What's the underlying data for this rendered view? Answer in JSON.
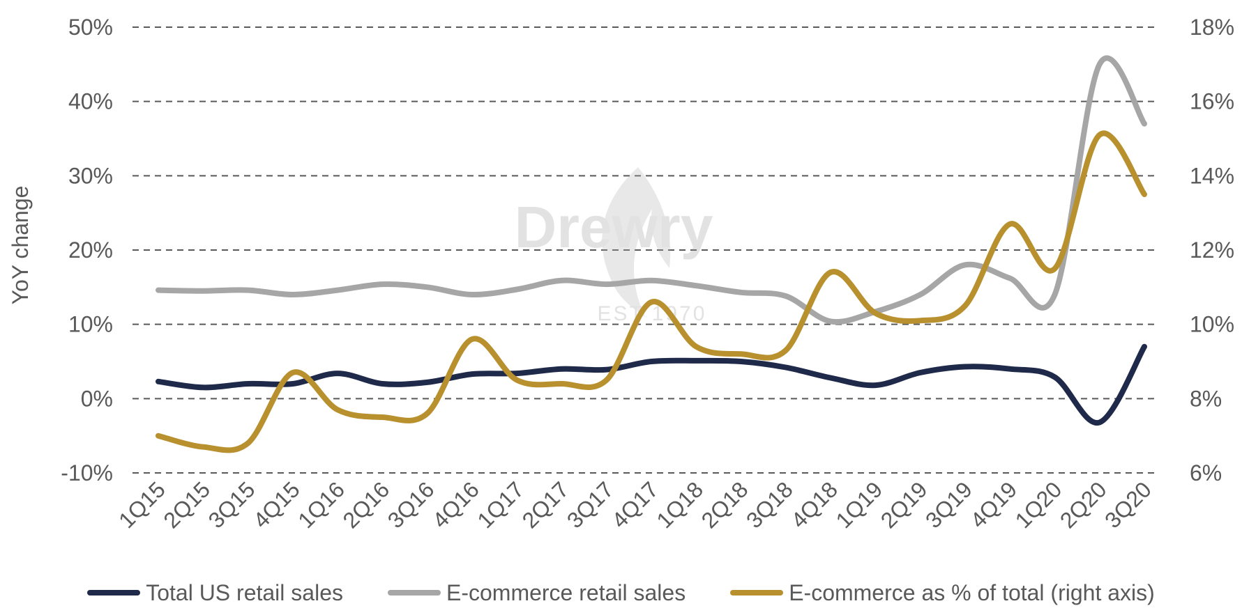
{
  "chart_data": {
    "type": "line",
    "title": "",
    "watermark": "Drewry EST 1970",
    "xlabel": "",
    "ylabel": "YoY change",
    "categories": [
      "1Q15",
      "2Q15",
      "3Q15",
      "4Q15",
      "1Q16",
      "2Q16",
      "3Q16",
      "4Q16",
      "1Q17",
      "2Q17",
      "3Q17",
      "4Q17",
      "1Q18",
      "2Q18",
      "3Q18",
      "4Q18",
      "1Q19",
      "2Q19",
      "3Q19",
      "4Q19",
      "1Q20",
      "2Q20",
      "3Q20"
    ],
    "left_axis": {
      "ylim": [
        -10,
        50
      ],
      "ticks": [
        -10,
        0,
        10,
        20,
        30,
        40,
        50
      ],
      "tick_labels": [
        "-10%",
        "0%",
        "10%",
        "20%",
        "30%",
        "40%",
        "50%"
      ]
    },
    "right_axis": {
      "ylim": [
        6,
        18
      ],
      "ticks": [
        6,
        8,
        10,
        12,
        14,
        16,
        18
      ],
      "tick_labels": [
        "6%",
        "8%",
        "10%",
        "12%",
        "14%",
        "16%",
        "18%"
      ]
    },
    "grid": true,
    "legend_position": "bottom",
    "series": [
      {
        "name": "Total US retail sales",
        "axis": "left",
        "color": "#1f2a4a",
        "values": [
          2.3,
          1.5,
          2.0,
          2.0,
          3.4,
          2.0,
          2.2,
          3.3,
          3.4,
          4.0,
          3.9,
          5.0,
          5.1,
          5.0,
          4.2,
          2.8,
          1.8,
          3.5,
          4.3,
          4.0,
          2.9,
          -3.2,
          7.0
        ]
      },
      {
        "name": "E-commerce retail sales",
        "axis": "left",
        "color": "#a6a6a6",
        "values": [
          14.6,
          14.5,
          14.6,
          14.0,
          14.6,
          15.4,
          15.0,
          14.0,
          14.7,
          15.9,
          15.4,
          15.9,
          15.2,
          14.3,
          13.8,
          10.4,
          11.7,
          14.0,
          18.0,
          16.2,
          14.0,
          45.0,
          37.0
        ]
      },
      {
        "name": "E-commerce as % of total (right axis)",
        "axis": "right",
        "color": "#b8902e",
        "values": [
          7.0,
          6.7,
          6.8,
          8.7,
          7.7,
          7.5,
          7.6,
          9.6,
          8.5,
          8.4,
          8.5,
          10.6,
          9.4,
          9.2,
          9.3,
          11.4,
          10.3,
          10.1,
          10.5,
          12.7,
          11.5,
          15.1,
          13.5
        ]
      }
    ]
  }
}
